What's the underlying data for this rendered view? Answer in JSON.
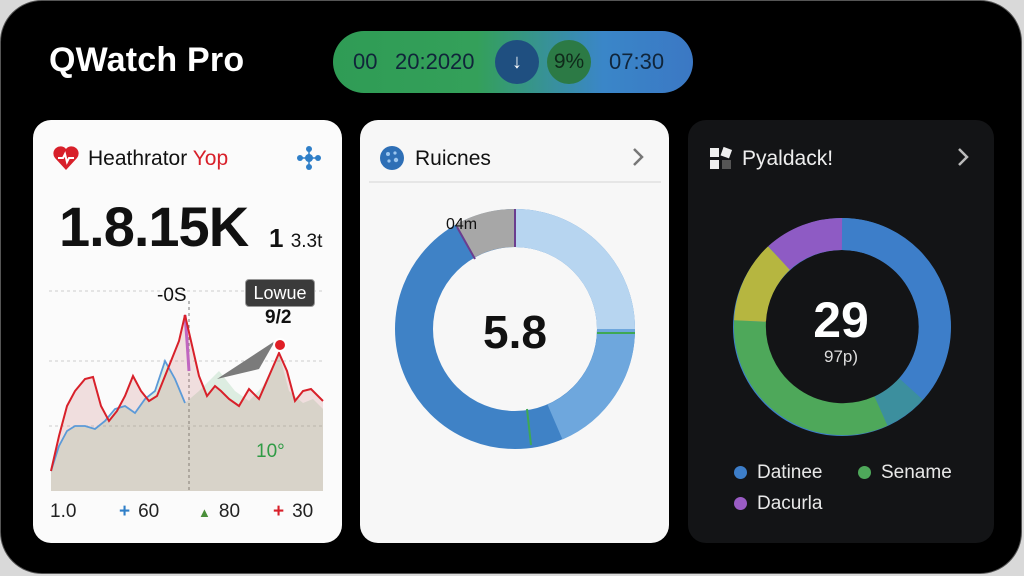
{
  "app": {
    "title": "QWatch Pro"
  },
  "status_bar": {
    "left_code": "00",
    "date": "20:2020",
    "down_icon_glyph": "↓",
    "badge": "9%",
    "time": "07:30"
  },
  "card_heart": {
    "title_main": "Heathrator",
    "title_accent": "Yop",
    "big_value": "1.8.15K",
    "sub_value": "1",
    "sub_unit": "3.3t",
    "peak_label": "-0S",
    "tooltip": "Lowue",
    "tooltip_value": "9/2",
    "zone_label": "10°",
    "legend": [
      {
        "symbol": "",
        "label": "1.0"
      },
      {
        "symbol": "+",
        "label": "60"
      },
      {
        "symbol": "▲",
        "label": "80"
      },
      {
        "symbol": "+",
        "label": "30"
      }
    ]
  },
  "card_routines": {
    "title": "Ruicnes",
    "segment_label": "04m",
    "center_value": "5.8"
  },
  "card_payload": {
    "title": "Pyaldack!",
    "center_value": "29",
    "center_sub": "97p)",
    "legend": [
      {
        "label": "Datinee",
        "color": "#3d7ec9"
      },
      {
        "label": "Sename",
        "color": "#4ea85a"
      },
      {
        "label": "Dacurla",
        "color": "#9a5cc4"
      }
    ]
  },
  "colors": {
    "accent_red": "#d8202a",
    "blue": "#3d7ec9",
    "green": "#3fa854",
    "purple": "#8e5bc4",
    "olive": "#b6b640"
  }
}
